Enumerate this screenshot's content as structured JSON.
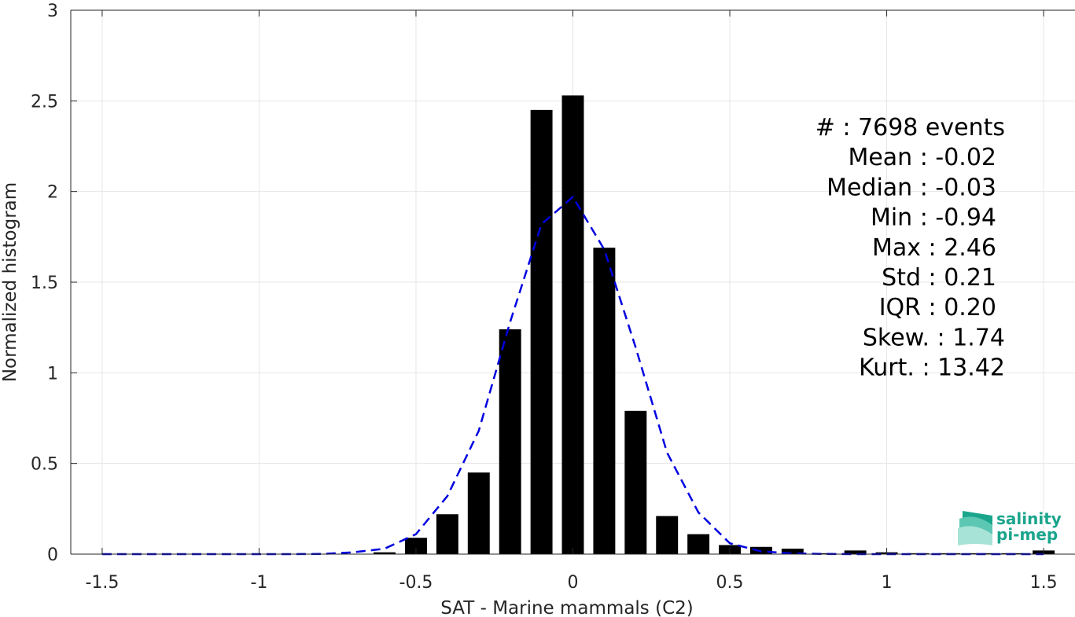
{
  "chart_data": {
    "type": "bar",
    "title": "",
    "xlabel": "SAT - Marine mammals (C2)",
    "ylabel": "Normalized histogram",
    "xlim": [
      -1.6,
      1.6
    ],
    "ylim": [
      0,
      3
    ],
    "xticks": [
      -1.5,
      -1,
      -0.5,
      0,
      0.5,
      1,
      1.5
    ],
    "xtick_labels": [
      "-1.5",
      "-1",
      "-0.5",
      "0",
      "0.5",
      "1",
      "1.5"
    ],
    "yticks": [
      0,
      0.5,
      1,
      1.5,
      2,
      2.5,
      3
    ],
    "ytick_labels": [
      "0",
      "0.5",
      "1",
      "1.5",
      "2",
      "2.5",
      "3"
    ],
    "grid": true,
    "bar_width": 0.07,
    "bar_color": "#000000",
    "bars": {
      "x": [
        -0.6,
        -0.5,
        -0.4,
        -0.3,
        -0.2,
        -0.1,
        0.0,
        0.1,
        0.2,
        0.3,
        0.4,
        0.5,
        0.6,
        0.7,
        0.8,
        0.9,
        1.0,
        1.1,
        1.2,
        1.3,
        1.4,
        1.5
      ],
      "values": [
        0.01,
        0.09,
        0.22,
        0.45,
        1.24,
        2.45,
        2.53,
        1.69,
        0.79,
        0.21,
        0.11,
        0.05,
        0.04,
        0.03,
        0.005,
        0.02,
        0.01,
        0.005,
        0.005,
        0.005,
        0.005,
        0.02
      ]
    },
    "fit_curve": {
      "style": "dashed",
      "color": "#0000e0",
      "x": [
        -1.5,
        -1.4,
        -1.3,
        -1.2,
        -1.1,
        -1.0,
        -0.9,
        -0.8,
        -0.7,
        -0.6,
        -0.5,
        -0.4,
        -0.3,
        -0.2,
        -0.1,
        0.0,
        0.1,
        0.2,
        0.3,
        0.4,
        0.5,
        0.6,
        0.7,
        0.8,
        0.9,
        1.0,
        1.1,
        1.2,
        1.3,
        1.4,
        1.5
      ],
      "y": [
        0,
        0,
        0,
        0,
        0,
        0,
        0,
        0.001,
        0.01,
        0.03,
        0.11,
        0.32,
        0.68,
        1.28,
        1.82,
        1.97,
        1.68,
        1.14,
        0.56,
        0.23,
        0.06,
        0.015,
        0.004,
        0.001,
        0,
        0,
        0,
        0,
        0,
        0,
        0
      ]
    },
    "stats_lines": [
      "#  : 7698 events",
      "Mean : -0.02",
      "Median : -0.03",
      "Min : -0.94",
      "Max : 2.46",
      "Std : 0.21",
      "IQR : 0.20",
      "Skew. : 1.74",
      "Kurt. : 13.42"
    ],
    "stats_placement": "top-right"
  },
  "logo": {
    "line1": "salinity",
    "line2": "pi-mep",
    "color": "#1aa58c"
  }
}
